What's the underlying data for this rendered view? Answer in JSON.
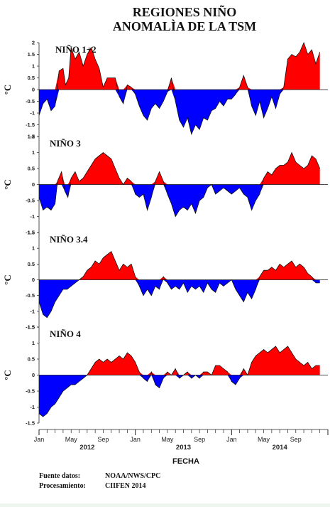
{
  "title": [
    "REGIONES NIÑO",
    "ANOMALÌA DE LA TSM"
  ],
  "colors": {
    "positive": "#ff0000",
    "negative": "#0000ff",
    "axis": "#222222"
  },
  "x_axis": {
    "label": "FECHA",
    "month_ticks": [
      "Jan",
      "May",
      "Sep",
      "Jan",
      "May",
      "Sep",
      "Jan",
      "May",
      "Sep"
    ],
    "year_ticks": [
      "2012",
      "2013",
      "2014"
    ]
  },
  "footer": {
    "rows": [
      {
        "key": "Fuente datos:",
        "value": "NOAA/NWS/CPC"
      },
      {
        "key": "Procesamiento:",
        "value": "CIIFEN 2014"
      }
    ]
  },
  "chart_data": [
    {
      "type": "area",
      "title": "NIÑO 1+2",
      "ylabel": "°C",
      "ylim": [
        -2,
        2
      ],
      "yticks": [
        "2",
        "1.5",
        "1",
        "0.5",
        "0",
        "-0.5",
        "-1",
        "-1.5",
        "-2"
      ],
      "x_unit": "months since Jan 2012",
      "points": [
        [
          0,
          -1.1
        ],
        [
          0.5,
          -0.6
        ],
        [
          1,
          -0.4
        ],
        [
          1.5,
          -0.9
        ],
        [
          2,
          -0.7
        ],
        [
          2.5,
          0.8
        ],
        [
          3,
          0.9
        ],
        [
          3.3,
          0.2
        ],
        [
          3.7,
          0.5
        ],
        [
          4,
          1.8
        ],
        [
          4.5,
          1.3
        ],
        [
          5,
          1.6
        ],
        [
          5.5,
          1.0
        ],
        [
          6,
          1.5
        ],
        [
          6.5,
          1.8
        ],
        [
          7,
          1.3
        ],
        [
          7.5,
          0.9
        ],
        [
          8,
          0.1
        ],
        [
          8.5,
          0.5
        ],
        [
          9,
          0.5
        ],
        [
          9.5,
          0.5
        ],
        [
          10,
          -0.3
        ],
        [
          10.5,
          -0.6
        ],
        [
          11,
          0.2
        ],
        [
          11.5,
          0.1
        ],
        [
          12,
          -0.2
        ],
        [
          12.5,
          -0.7
        ],
        [
          13,
          -1.1
        ],
        [
          13.5,
          -1.3
        ],
        [
          14,
          -0.8
        ],
        [
          14.5,
          -0.6
        ],
        [
          15,
          -0.8
        ],
        [
          15.5,
          -0.5
        ],
        [
          16,
          -0.1
        ],
        [
          16.5,
          0.5
        ],
        [
          17,
          -0.5
        ],
        [
          17.5,
          -1.3
        ],
        [
          18,
          -1.6
        ],
        [
          18.5,
          -1.2
        ],
        [
          19,
          -1.9
        ],
        [
          19.5,
          -1.5
        ],
        [
          20,
          -1.7
        ],
        [
          20.5,
          -1.2
        ],
        [
          21,
          -1.3
        ],
        [
          21.5,
          -0.9
        ],
        [
          22,
          -0.8
        ],
        [
          22.5,
          -0.5
        ],
        [
          23,
          -0.7
        ],
        [
          23.5,
          -0.4
        ],
        [
          24,
          -0.4
        ],
        [
          24.5,
          -0.2
        ],
        [
          25,
          0.1
        ],
        [
          25.5,
          0.6
        ],
        [
          26,
          0.1
        ],
        [
          26.5,
          -0.7
        ],
        [
          27,
          -1.1
        ],
        [
          27.5,
          -0.5
        ],
        [
          28,
          -1.2
        ],
        [
          28.5,
          -0.8
        ],
        [
          29,
          -0.3
        ],
        [
          29.5,
          -0.8
        ],
        [
          30,
          -0.2
        ],
        [
          30.5,
          0.1
        ],
        [
          31,
          1.3
        ],
        [
          31.5,
          1.5
        ],
        [
          32,
          1.4
        ],
        [
          32.5,
          1.6
        ],
        [
          33,
          2.0
        ],
        [
          33.5,
          1.5
        ],
        [
          34,
          1.7
        ],
        [
          34.5,
          1.1
        ],
        [
          35,
          1.6
        ]
      ]
    },
    {
      "type": "area",
      "title": "NIÑO 3",
      "ylabel": "°C",
      "ylim": [
        -1.5,
        1.5
      ],
      "yticks": [
        "1.5",
        "1",
        "0.5",
        "0",
        "-0.5",
        "-1",
        "-1.5"
      ],
      "x_unit": "months since Jan 2012",
      "points": [
        [
          0,
          -0.4
        ],
        [
          0.5,
          -0.8
        ],
        [
          1,
          -0.7
        ],
        [
          1.5,
          -0.8
        ],
        [
          2,
          -0.6
        ],
        [
          2.3,
          0.1
        ],
        [
          2.8,
          0.4
        ],
        [
          3.2,
          -0.2
        ],
        [
          3.6,
          -0.4
        ],
        [
          4,
          0.2
        ],
        [
          4.5,
          0.4
        ],
        [
          5,
          0.1
        ],
        [
          5.5,
          0.2
        ],
        [
          6,
          0.4
        ],
        [
          6.5,
          0.6
        ],
        [
          7,
          0.8
        ],
        [
          7.5,
          0.9
        ],
        [
          8,
          1.0
        ],
        [
          8.5,
          0.9
        ],
        [
          9,
          0.8
        ],
        [
          9.5,
          0.5
        ],
        [
          10,
          0.2
        ],
        [
          10.5,
          0.0
        ],
        [
          11,
          0.2
        ],
        [
          11.5,
          0.1
        ],
        [
          12,
          -0.3
        ],
        [
          12.5,
          -0.4
        ],
        [
          13,
          -0.3
        ],
        [
          13.5,
          -0.8
        ],
        [
          14,
          -0.4
        ],
        [
          14.5,
          0.1
        ],
        [
          15,
          0.4
        ],
        [
          15.5,
          0.1
        ],
        [
          16,
          -0.3
        ],
        [
          16.5,
          -0.6
        ],
        [
          17,
          -1.0
        ],
        [
          17.5,
          -0.8
        ],
        [
          18,
          -0.7
        ],
        [
          18.5,
          -0.8
        ],
        [
          19,
          -0.6
        ],
        [
          19.5,
          -0.9
        ],
        [
          20,
          -0.5
        ],
        [
          20.5,
          -0.4
        ],
        [
          21,
          -0.1
        ],
        [
          21.5,
          0.0
        ],
        [
          22,
          -0.3
        ],
        [
          22.5,
          -0.2
        ],
        [
          23,
          -0.1
        ],
        [
          23.5,
          -0.2
        ],
        [
          24,
          -0.3
        ],
        [
          24.5,
          -0.2
        ],
        [
          25,
          -0.1
        ],
        [
          25.5,
          -0.3
        ],
        [
          26,
          -0.4
        ],
        [
          26.5,
          -0.8
        ],
        [
          27,
          -0.5
        ],
        [
          27.5,
          -0.3
        ],
        [
          28,
          0.2
        ],
        [
          28.5,
          0.4
        ],
        [
          29,
          0.3
        ],
        [
          29.5,
          0.5
        ],
        [
          30,
          0.6
        ],
        [
          30.5,
          0.6
        ],
        [
          31,
          0.7
        ],
        [
          31.5,
          1.0
        ],
        [
          32,
          0.7
        ],
        [
          32.5,
          0.6
        ],
        [
          33,
          0.5
        ],
        [
          33.5,
          0.6
        ],
        [
          34,
          0.9
        ],
        [
          34.5,
          0.8
        ],
        [
          35,
          0.5
        ]
      ]
    },
    {
      "type": "area",
      "title": "NIÑO 3.4",
      "ylabel": "°C",
      "ylim": [
        -1.5,
        1.5
      ],
      "yticks": [
        "1.5",
        "1",
        "0.5",
        "0",
        "-0.5",
        "-1",
        "-1.5"
      ],
      "x_unit": "months since Jan 2012",
      "points": [
        [
          0,
          -0.7
        ],
        [
          0.5,
          -1.1
        ],
        [
          1,
          -1.2
        ],
        [
          1.5,
          -1.0
        ],
        [
          2,
          -0.7
        ],
        [
          2.5,
          -0.5
        ],
        [
          3,
          -0.3
        ],
        [
          3.5,
          -0.3
        ],
        [
          4,
          -0.2
        ],
        [
          4.5,
          -0.1
        ],
        [
          5,
          0.0
        ],
        [
          5.5,
          0.1
        ],
        [
          6,
          0.3
        ],
        [
          6.5,
          0.4
        ],
        [
          7,
          0.6
        ],
        [
          7.5,
          0.5
        ],
        [
          8,
          0.7
        ],
        [
          8.5,
          0.8
        ],
        [
          9,
          0.9
        ],
        [
          9.5,
          0.6
        ],
        [
          10,
          0.3
        ],
        [
          10.5,
          0.5
        ],
        [
          11,
          0.4
        ],
        [
          11.5,
          0.5
        ],
        [
          12,
          0.1
        ],
        [
          12.5,
          -0.2
        ],
        [
          13,
          -0.5
        ],
        [
          13.5,
          -0.3
        ],
        [
          14,
          -0.5
        ],
        [
          14.5,
          -0.2
        ],
        [
          15,
          -0.3
        ],
        [
          15.5,
          0.1
        ],
        [
          16,
          -0.1
        ],
        [
          16.5,
          -0.3
        ],
        [
          17,
          -0.2
        ],
        [
          17.5,
          -0.3
        ],
        [
          18,
          -0.1
        ],
        [
          18.5,
          -0.4
        ],
        [
          19,
          -0.2
        ],
        [
          19.5,
          -0.3
        ],
        [
          20,
          -0.2
        ],
        [
          20.5,
          -0.4
        ],
        [
          21,
          -0.1
        ],
        [
          21.5,
          -0.3
        ],
        [
          22,
          -0.4
        ],
        [
          22.5,
          -0.1
        ],
        [
          23,
          -0.2
        ],
        [
          23.5,
          -0.1
        ],
        [
          24,
          0.0
        ],
        [
          24.5,
          -0.3
        ],
        [
          25,
          -0.5
        ],
        [
          25.5,
          -0.7
        ],
        [
          26,
          -0.4
        ],
        [
          26.5,
          -0.6
        ],
        [
          27,
          -0.3
        ],
        [
          27.5,
          0.1
        ],
        [
          28,
          0.3
        ],
        [
          28.5,
          0.3
        ],
        [
          29,
          0.4
        ],
        [
          29.5,
          0.3
        ],
        [
          30,
          0.5
        ],
        [
          30.5,
          0.4
        ],
        [
          31,
          0.5
        ],
        [
          31.5,
          0.6
        ],
        [
          32,
          0.4
        ],
        [
          32.5,
          0.5
        ],
        [
          33,
          0.4
        ],
        [
          33.5,
          0.2
        ],
        [
          34,
          0.1
        ],
        [
          34.5,
          -0.1
        ],
        [
          35,
          -0.1
        ]
      ]
    },
    {
      "type": "area",
      "title": "NIÑO 4",
      "ylabel": "°C",
      "ylim": [
        -1.5,
        1.5
      ],
      "yticks": [
        "1.5",
        "1",
        "0.5",
        "0",
        "-0.5",
        "-1",
        "-1.5"
      ],
      "x_unit": "months since Jan 2012",
      "points": [
        [
          0,
          -1.2
        ],
        [
          0.5,
          -1.3
        ],
        [
          1,
          -1.2
        ],
        [
          1.5,
          -1.0
        ],
        [
          2,
          -0.9
        ],
        [
          2.5,
          -0.7
        ],
        [
          3,
          -0.5
        ],
        [
          3.5,
          -0.4
        ],
        [
          4,
          -0.3
        ],
        [
          4.5,
          -0.3
        ],
        [
          5,
          -0.2
        ],
        [
          5.5,
          -0.1
        ],
        [
          6,
          0.0
        ],
        [
          6.5,
          0.2
        ],
        [
          7,
          0.4
        ],
        [
          7.5,
          0.5
        ],
        [
          8,
          0.4
        ],
        [
          8.5,
          0.5
        ],
        [
          9,
          0.4
        ],
        [
          9.5,
          0.5
        ],
        [
          10,
          0.6
        ],
        [
          10.5,
          0.5
        ],
        [
          11,
          0.7
        ],
        [
          11.5,
          0.6
        ],
        [
          12,
          0.4
        ],
        [
          12.5,
          0.1
        ],
        [
          13,
          -0.1
        ],
        [
          13.5,
          -0.2
        ],
        [
          14,
          0.1
        ],
        [
          14.5,
          -0.3
        ],
        [
          15,
          -0.4
        ],
        [
          15.5,
          -0.1
        ],
        [
          16,
          0.1
        ],
        [
          16.5,
          0.0
        ],
        [
          17,
          0.2
        ],
        [
          17.5,
          -0.1
        ],
        [
          18,
          0.0
        ],
        [
          18.5,
          0.1
        ],
        [
          19,
          -0.1
        ],
        [
          19.5,
          0.0
        ],
        [
          20,
          -0.1
        ],
        [
          20.5,
          0.1
        ],
        [
          21,
          0.1
        ],
        [
          21.5,
          0.0
        ],
        [
          22,
          0.3
        ],
        [
          22.5,
          0.3
        ],
        [
          23,
          0.2
        ],
        [
          23.5,
          0.1
        ],
        [
          24,
          -0.2
        ],
        [
          24.5,
          -0.3
        ],
        [
          25,
          -0.1
        ],
        [
          25.5,
          0.2
        ],
        [
          26,
          0.0
        ],
        [
          26.5,
          0.4
        ],
        [
          27,
          0.6
        ],
        [
          27.5,
          0.7
        ],
        [
          28,
          0.8
        ],
        [
          28.5,
          0.7
        ],
        [
          29,
          0.8
        ],
        [
          29.5,
          0.9
        ],
        [
          30,
          0.7
        ],
        [
          30.5,
          0.8
        ],
        [
          31,
          0.9
        ],
        [
          31.5,
          0.7
        ],
        [
          32,
          0.5
        ],
        [
          32.5,
          0.4
        ],
        [
          33,
          0.3
        ],
        [
          33.5,
          0.4
        ],
        [
          34,
          0.2
        ],
        [
          34.5,
          0.3
        ],
        [
          35,
          0.3
        ]
      ]
    }
  ]
}
